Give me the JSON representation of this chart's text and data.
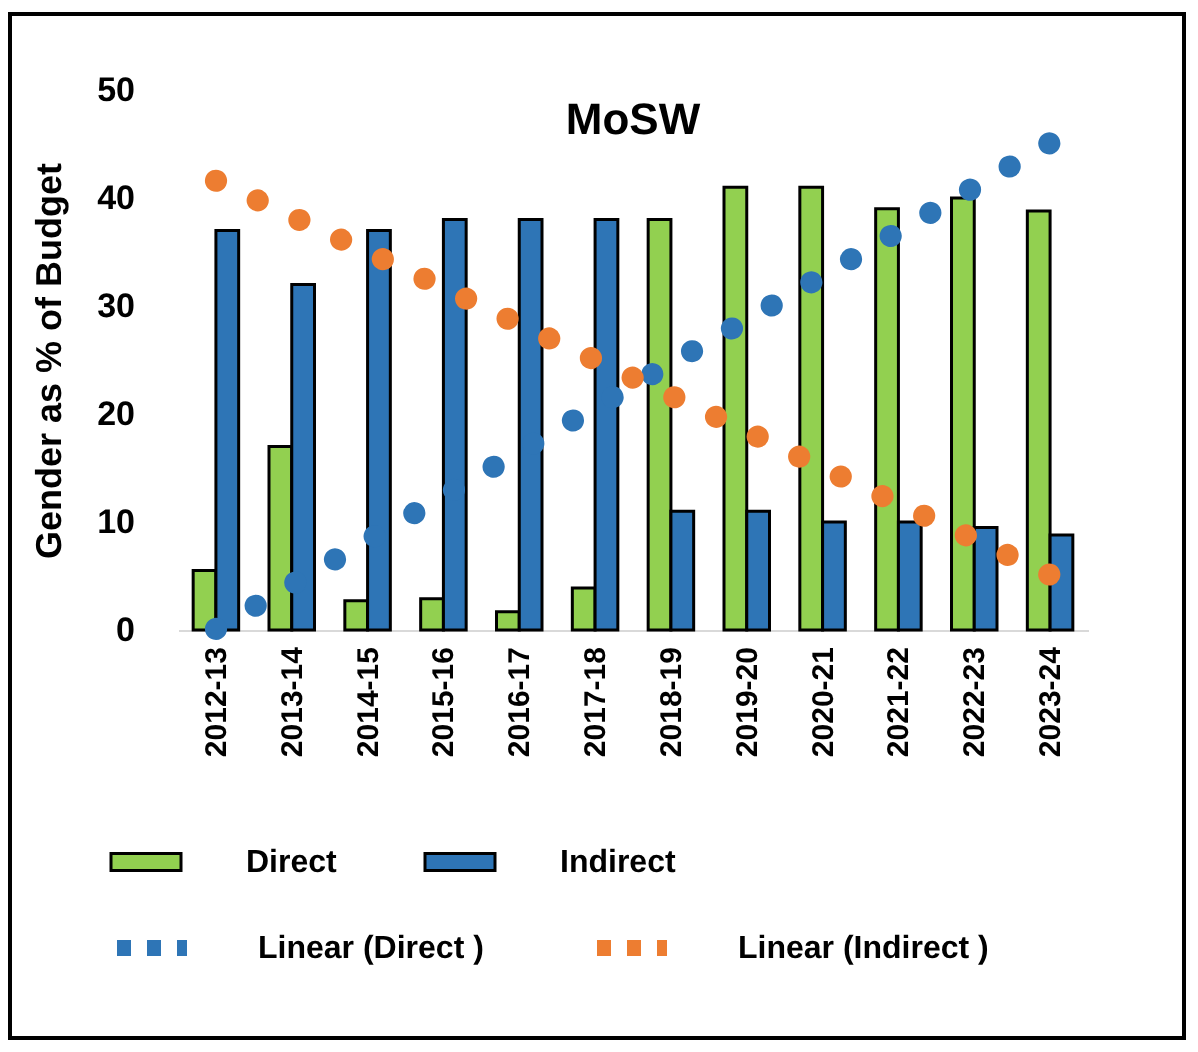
{
  "chart_data": {
    "type": "bar",
    "title": "MoSW",
    "ylabel": "Gender as % of Budget",
    "categories": [
      "2012-13",
      "2013-14",
      "2014-15",
      "2015-16",
      "2016-17",
      "2017-18",
      "2018-19",
      "2019-20",
      "2020-21",
      "2021-22",
      "2022-23",
      "2023-24"
    ],
    "series": [
      {
        "name": "Direct",
        "color": "#92d050",
        "values": [
          5.5,
          17,
          2.7,
          2.9,
          1.7,
          3.9,
          38,
          41,
          41,
          39,
          40,
          38.8
        ]
      },
      {
        "name": "Indirect",
        "color": "#2e75b6",
        "values": [
          37,
          32,
          37,
          38,
          38,
          38,
          11,
          11,
          10,
          10,
          9.5,
          8.8
        ]
      },
      {
        "name": "Linear (Direct )",
        "type": "line",
        "line_style": "dotted",
        "color": "#2e75b6",
        "values": [
          0.1,
          4.2,
          8.3,
          12.4,
          16.5,
          20.6,
          24.7,
          28.7,
          32.8,
          36.9,
          41.0,
          45.1
        ]
      },
      {
        "name": "Linear (Indirect )",
        "type": "line",
        "line_style": "dotted",
        "color": "#ed7d31",
        "values": [
          41.6,
          38.3,
          35.0,
          31.7,
          28.3,
          25.0,
          21.7,
          18.4,
          15.0,
          11.7,
          8.4,
          5.1
        ]
      }
    ],
    "ylim": [
      0,
      50
    ],
    "yticks": [
      0,
      10,
      20,
      30,
      40,
      50
    ],
    "grid": false,
    "legend": "bottom"
  }
}
